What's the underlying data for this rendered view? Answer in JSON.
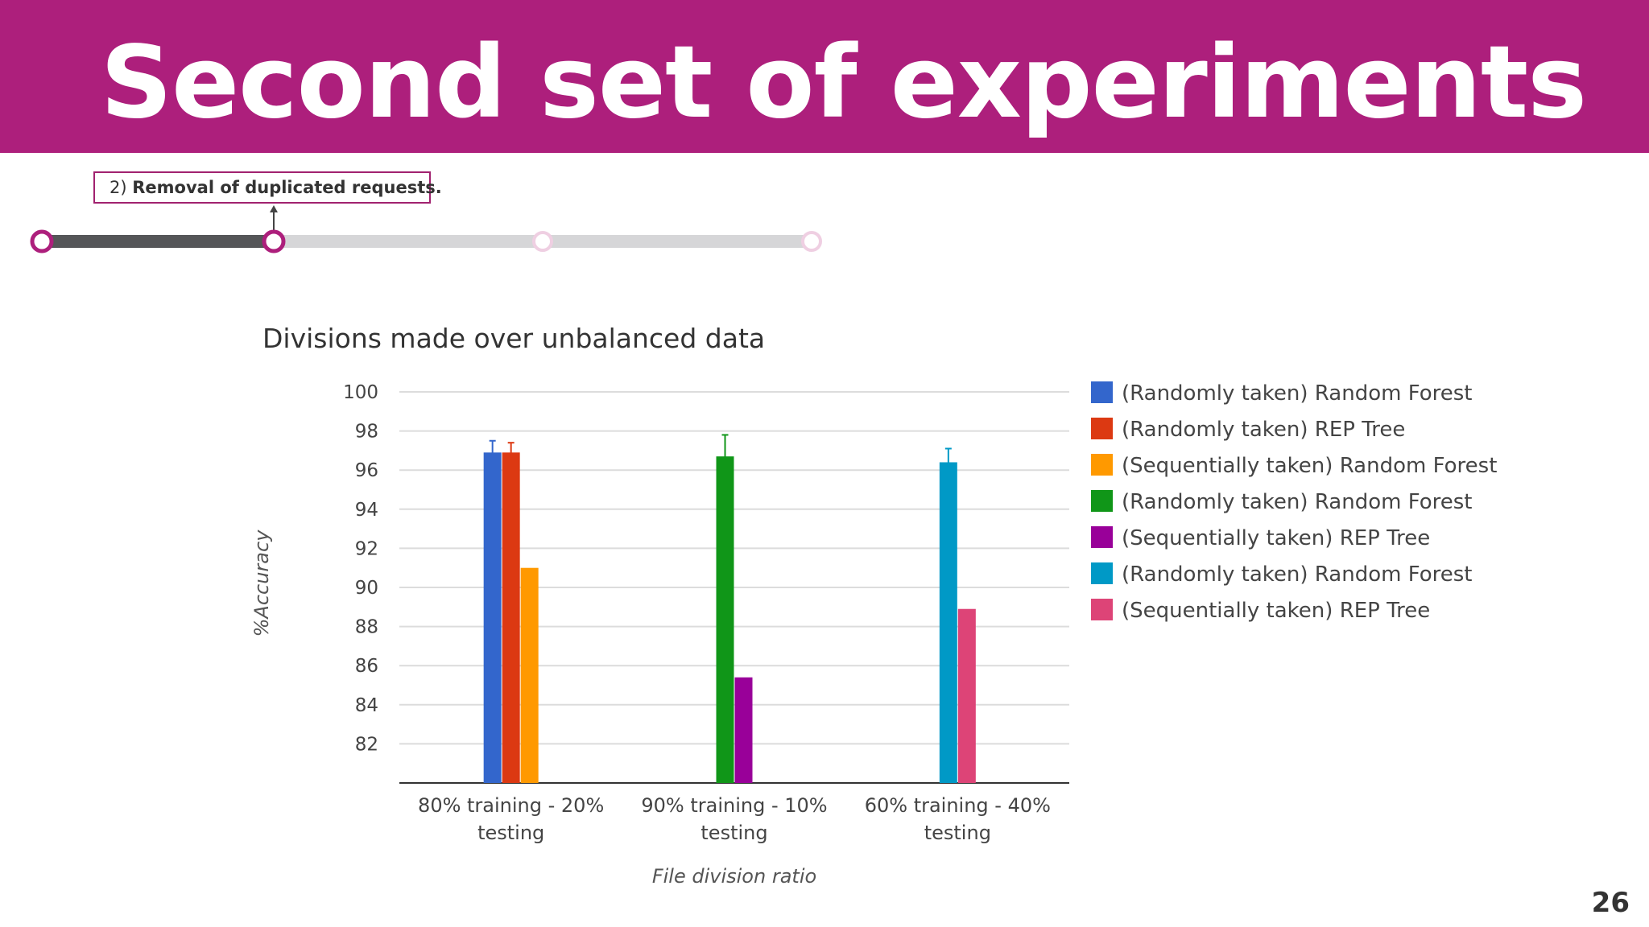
{
  "slide": {
    "title": "Second set of experiments",
    "page_number": "26",
    "header_color": "#ad1f7c"
  },
  "step_box": {
    "number": "2)",
    "text": "Removal of duplicated requests."
  },
  "timeline": {
    "steps_total": 4,
    "current_step": 2,
    "accent": "#ad1f7c"
  },
  "chart_data": {
    "type": "bar",
    "title": "Divisions made over unbalanced data",
    "xlabel": "File division ratio",
    "ylabel": "%Accuracy",
    "ylim": [
      80,
      100
    ],
    "yticks": [
      82,
      84,
      86,
      88,
      90,
      92,
      94,
      96,
      98,
      100
    ],
    "grid": true,
    "legend_position": "right",
    "categories": [
      "80% training - 20% testing",
      "90% training - 10% testing",
      "60% training - 40% testing"
    ],
    "category_lines": [
      [
        "80% training - 20%",
        "testing"
      ],
      [
        "90% training - 10%",
        "testing"
      ],
      [
        "60% training - 40%",
        "testing"
      ]
    ],
    "series": [
      {
        "name": "(Randomly taken) Random Forest",
        "color": "#3366cc",
        "values": [
          96.9,
          null,
          null
        ],
        "error_high": [
          97.5,
          null,
          null
        ]
      },
      {
        "name": "(Randomly taken) REP Tree",
        "color": "#dc3912",
        "values": [
          96.9,
          null,
          null
        ],
        "error_high": [
          97.4,
          null,
          null
        ]
      },
      {
        "name": "(Sequentially taken) Random Forest",
        "color": "#ff9900",
        "values": [
          91.0,
          null,
          null
        ],
        "error_high": [
          null,
          null,
          null
        ]
      },
      {
        "name": "(Randomly taken) Random Forest",
        "color": "#109618",
        "values": [
          null,
          96.7,
          null
        ],
        "error_high": [
          null,
          97.8,
          null
        ]
      },
      {
        "name": "(Sequentially taken) REP Tree",
        "color": "#990099",
        "values": [
          null,
          85.4,
          null
        ],
        "error_high": [
          null,
          null,
          null
        ]
      },
      {
        "name": "(Randomly taken) Random Forest",
        "color": "#0099c6",
        "values": [
          null,
          null,
          96.4
        ],
        "error_high": [
          null,
          null,
          97.1
        ]
      },
      {
        "name": "(Sequentially taken) REP Tree",
        "color": "#dd4477",
        "values": [
          null,
          null,
          88.9
        ],
        "error_high": [
          null,
          null,
          null
        ]
      }
    ]
  }
}
